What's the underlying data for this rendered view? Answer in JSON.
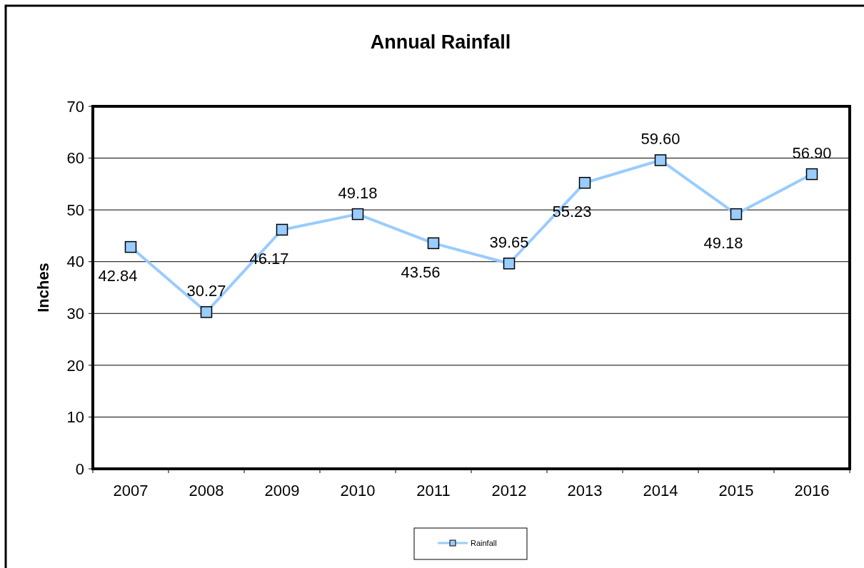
{
  "chart_data": {
    "type": "line",
    "title": "Annual Rainfall",
    "ylabel": "Inches",
    "categories": [
      "2007",
      "2008",
      "2009",
      "2010",
      "2011",
      "2012",
      "2013",
      "2014",
      "2015",
      "2016"
    ],
    "series": [
      {
        "name": "Rainfall",
        "color": "#99ccff",
        "values": [
          42.84,
          30.27,
          46.17,
          49.18,
          43.56,
          39.65,
          55.23,
          59.6,
          49.18,
          56.9
        ]
      }
    ],
    "value_labels": [
      "42.84",
      "30.27",
      "46.17",
      "49.18",
      "43.56",
      "39.65",
      "55.23",
      "59.60",
      "49.18",
      "56.90"
    ],
    "ylim": [
      0,
      70
    ],
    "yticks": [
      0,
      10,
      20,
      30,
      40,
      50,
      60,
      70
    ],
    "grid": "y",
    "legend": "bottom",
    "marker": "square",
    "line_style": "solid"
  }
}
